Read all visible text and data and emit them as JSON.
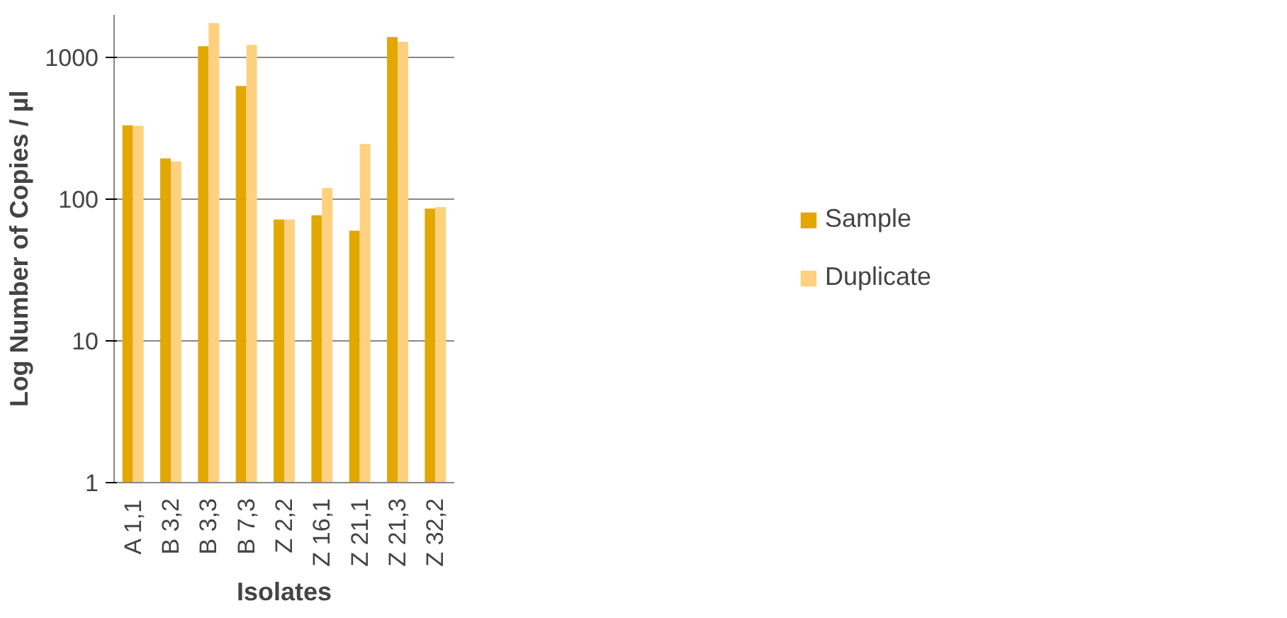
{
  "chart_data": {
    "type": "bar",
    "xlabel": "Isolates",
    "ylabel": "Log Number of Copies / µl",
    "categories": [
      "A 1,1",
      "B 3,2",
      "B 3,3",
      "B 7,3",
      "Z 2,2",
      "Z 16,1",
      "Z 21,1",
      "Z 21,3",
      "Z 32,2"
    ],
    "series": [
      {
        "name": "Sample",
        "color": "#e2a800",
        "values": [
          333,
          194,
          1200,
          630,
          72,
          77,
          60,
          1395,
          86
        ]
      },
      {
        "name": "Duplicate",
        "color": "#fdd17f",
        "values": [
          330,
          185,
          1750,
          1230,
          72,
          120,
          245,
          1290,
          88
        ]
      }
    ],
    "log": true,
    "ylim": [
      1,
      2000
    ],
    "yticks": [
      1,
      10,
      100,
      1000
    ],
    "grid": "y",
    "legend": "right"
  }
}
